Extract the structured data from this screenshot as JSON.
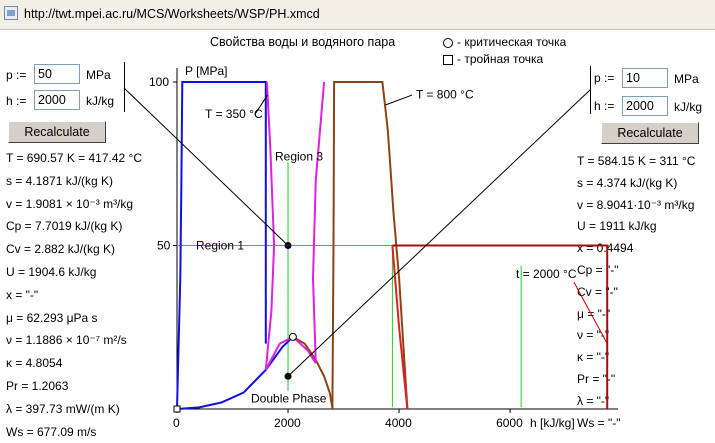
{
  "browser": {
    "url": "http://twt.mpei.ac.ru/MCS/Worksheets/WSP/PH.xmcd"
  },
  "title": "Свойства воды и водяного пара",
  "legend": {
    "critical": "- критическая точка",
    "triple": "- тройная точка"
  },
  "left": {
    "p_label": "p :=",
    "p_value": "50",
    "p_unit": "MPa",
    "h_label": "h :=",
    "h_value": "2000",
    "h_unit": "kJ/kg",
    "button": "Recalculate",
    "results": [
      "T = 690.57 K = 417.42 °C",
      "s = 4.1871 kJ/(kg K)",
      "v = 1.9081 × 10⁻³ m³/kg",
      "Cp = 7.7019 kJ/(kg K)",
      "Cv = 2.882 kJ/(kg K)",
      "U = 1904.6 kJ/kg",
      "x = \"-\"",
      "μ = 62.293 μPa s",
      "ν = 1.1886 × 10⁻⁷ m²/s",
      "κ = 4.8054",
      "Pr = 1.2063",
      "λ = 397.73 mW/(m K)",
      "Ws = 677.09 m/s"
    ]
  },
  "right": {
    "p_label": "p :=",
    "p_value": "10",
    "p_unit": "MPa",
    "h_label": "h :=",
    "h_value": "2000",
    "h_unit": "kJ/kg",
    "button": "Recalculate",
    "results": [
      "T = 584.15 K = 311 °C",
      "s = 4.374 kJ/(kg K)",
      "v = 8.9041·10⁻³ m³/kg",
      "U = 1911 kJ/kg",
      "x = 0.4494",
      "Cp = \"-\"",
      "Cv = \"-\"",
      "μ = \"-\"",
      "ν = \"-\"",
      "κ = \"-\"",
      "Pr = \"-\"",
      "λ = \"-\"",
      "Ws = \"-\""
    ]
  },
  "chart_data": {
    "type": "line",
    "ylabel": "P [MPa]",
    "xlabel": "h [kJ/kg]",
    "xlim": [
      0,
      7800
    ],
    "ylim": [
      0,
      100
    ],
    "x_ticks": [
      "0",
      "2000",
      "4000",
      "6000"
    ],
    "y_ticks": [
      "50",
      "100"
    ],
    "annotations": {
      "region1": "Region 1",
      "region3": "Region 3",
      "double_phase": "Double Phase",
      "t350": "T = 350 °C",
      "t800": "T = 800 °C",
      "t2000": "t = 2000 °C"
    },
    "points": [
      {
        "name": "state-left",
        "h": 2000,
        "p": 50
      },
      {
        "name": "state-right",
        "h": 2000,
        "p": 10
      },
      {
        "name": "critical",
        "h": 2087,
        "p": 22.06
      },
      {
        "name": "triple",
        "h": 0,
        "p": 0
      }
    ],
    "series": [
      {
        "color": "#1010e0",
        "points": [
          [
            0,
            0
          ],
          [
            60,
            40
          ],
          [
            80,
            70
          ],
          [
            95,
            100
          ],
          [
            1600,
            100
          ],
          [
            1600,
            80
          ],
          [
            1600,
            20
          ]
        ]
      },
      {
        "color": "#1010e0",
        "points": [
          [
            0,
            0
          ],
          [
            400,
            0.5
          ],
          [
            800,
            2
          ],
          [
            1200,
            5
          ],
          [
            1600,
            12
          ],
          [
            1900,
            19
          ],
          [
            2087,
            22.06
          ]
        ]
      },
      {
        "color": "#8b4513",
        "points": [
          [
            2087,
            22.06
          ],
          [
            2300,
            20
          ],
          [
            2500,
            15
          ],
          [
            2650,
            10
          ],
          [
            2750,
            5
          ],
          [
            2803,
            0
          ]
        ]
      },
      {
        "color": "#8b4513",
        "points": [
          [
            2800,
            0
          ],
          [
            2820,
            50
          ],
          [
            2830,
            100
          ],
          [
            3700,
            100
          ],
          [
            3800,
            85
          ],
          [
            3900,
            60
          ],
          [
            4000,
            40
          ],
          [
            4150,
            0
          ]
        ]
      },
      {
        "color": "#e020e0",
        "points": [
          [
            1600,
            12
          ],
          [
            1700,
            30
          ],
          [
            1750,
            50
          ],
          [
            1680,
            80
          ],
          [
            1620,
            100
          ]
        ]
      },
      {
        "color": "#e020e0",
        "points": [
          [
            2500,
            14
          ],
          [
            2450,
            40
          ],
          [
            2500,
            70
          ],
          [
            2650,
            100
          ]
        ]
      },
      {
        "color": "#e020e0",
        "points": [
          [
            1600,
            12
          ],
          [
            1850,
            20
          ],
          [
            2087,
            22.06
          ],
          [
            2350,
            18
          ],
          [
            2500,
            14
          ]
        ]
      },
      {
        "color": "#e02020",
        "points": [
          [
            3880,
            50
          ],
          [
            4000,
            25
          ],
          [
            4150,
            0
          ]
        ]
      },
      {
        "color": "#a01010",
        "points": [
          [
            3880,
            50
          ],
          [
            7750,
            50
          ],
          [
            7750,
            0
          ]
        ]
      }
    ],
    "guides": {
      "color": "#22cc22"
    }
  }
}
